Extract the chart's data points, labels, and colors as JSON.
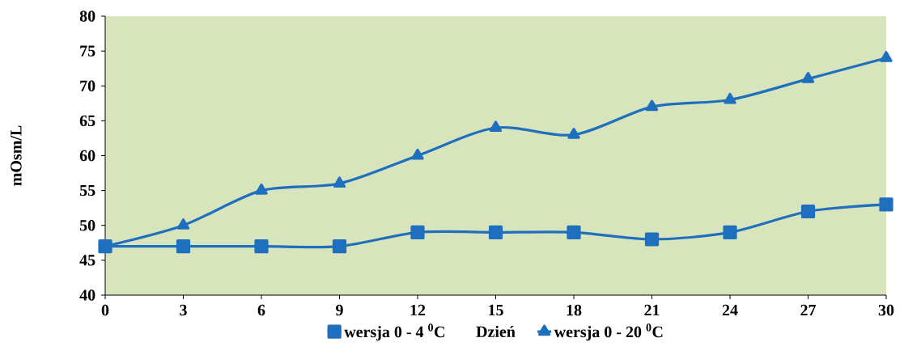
{
  "chart_data": {
    "type": "line",
    "xlabel": "Dzień",
    "ylabel": "mOsm/L",
    "x": [
      0,
      3,
      6,
      9,
      12,
      15,
      18,
      21,
      24,
      27,
      30
    ],
    "series": [
      {
        "name": "wersja 0 - 4 $^{0}$C",
        "color": "#1f6fbf",
        "marker": "square",
        "values": [
          47,
          47,
          47,
          47,
          49,
          49,
          49,
          48,
          49,
          52,
          53
        ]
      },
      {
        "name": "wersja 0 - 20 $^{0}$C",
        "color": "#1f6fbf",
        "marker": "triangle",
        "values": [
          47,
          50,
          55,
          56,
          60,
          64,
          63,
          67,
          68,
          71,
          74
        ]
      }
    ],
    "xlim": [
      0,
      30
    ],
    "xticks": [
      0,
      3,
      6,
      9,
      12,
      15,
      18,
      21,
      24,
      27,
      30
    ],
    "ylim": [
      40,
      80
    ],
    "yticks": [
      40,
      45,
      50,
      55,
      60,
      65,
      70,
      75,
      80
    ],
    "grid": false,
    "legend": "bottom",
    "line_style": "solid"
  }
}
